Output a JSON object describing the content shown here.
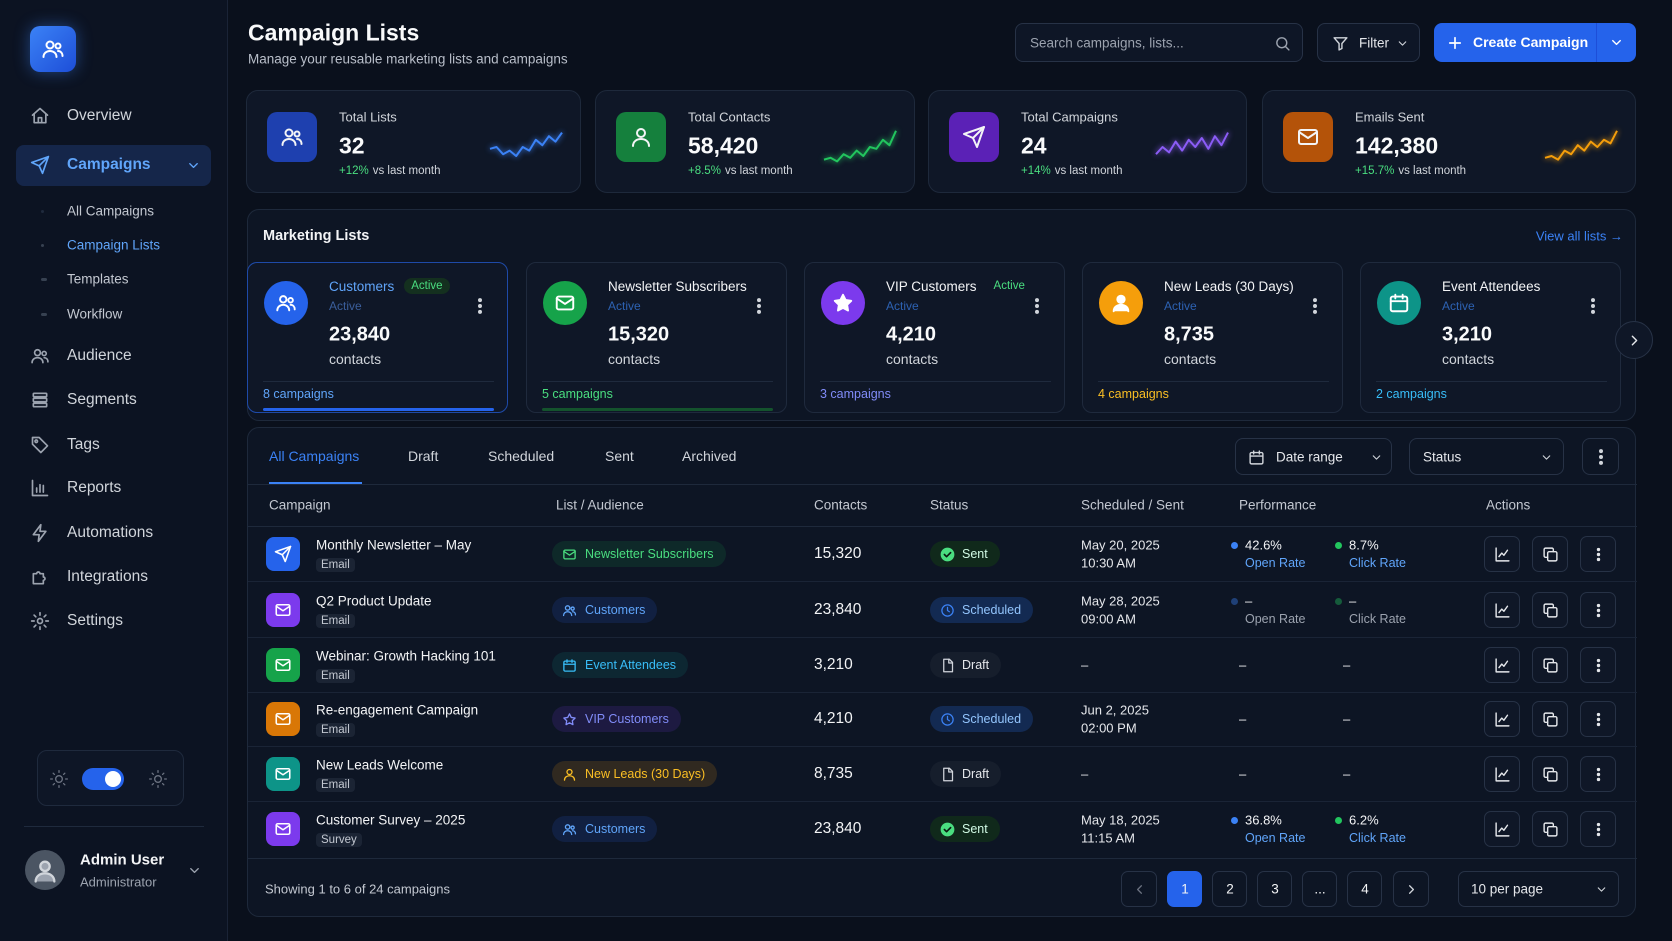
{
  "sidebar": {
    "nav": [
      "Overview",
      "Campaigns",
      "Audience",
      "Segments",
      "Tags",
      "Reports",
      "Automations",
      "Integrations",
      "Settings"
    ],
    "subnav": [
      "All Campaigns",
      "Campaign Lists",
      "Templates",
      "Workflow"
    ],
    "user": {
      "name": "Admin User",
      "role": "Administrator"
    }
  },
  "header": {
    "title": "Campaign Lists",
    "subtitle": "Manage your reusable marketing lists and campaigns",
    "search": "Search campaigns, lists...",
    "filter": "Filter",
    "create": "Create Campaign"
  },
  "stats": [
    {
      "label": "Total Lists",
      "value": "32",
      "change": "+12%",
      "note": "vs last month"
    },
    {
      "label": "Total Contacts",
      "value": "58,420",
      "change": "+8.5%",
      "note": "vs last month"
    },
    {
      "label": "Total Campaigns",
      "value": "24",
      "change": "+14%",
      "note": "vs last month"
    },
    {
      "label": "Emails Sent",
      "value": "142,380",
      "change": "+15.7%",
      "note": "vs last month"
    }
  ],
  "lists": {
    "title": "Marketing Lists",
    "view_all": "View all lists →",
    "items": [
      {
        "name": "Customers",
        "badge": "Active",
        "status": "Active",
        "count": "23,840",
        "unit": "contacts",
        "campaigns": "8 campaigns"
      },
      {
        "name": "Newsletter Subscribers",
        "status": "Active",
        "count": "15,320",
        "unit": "contacts",
        "campaigns": "5 campaigns"
      },
      {
        "name": "VIP Customers",
        "badge": "Active",
        "status": "Active",
        "count": "4,210",
        "unit": "contacts",
        "campaigns": "3 campaigns"
      },
      {
        "name": "New Leads (30 Days)",
        "status": "Active",
        "count": "8,735",
        "unit": "contacts",
        "campaigns": "4 campaigns"
      },
      {
        "name": "Event Attendees",
        "status": "Active",
        "count": "3,210",
        "unit": "contacts",
        "campaigns": "2 campaigns"
      }
    ]
  },
  "table": {
    "tabs": [
      "All Campaigns",
      "Draft",
      "Scheduled",
      "Sent",
      "Archived"
    ],
    "date_range": "Date range",
    "status_filter": "Status",
    "columns": [
      "Campaign",
      "List / Audience",
      "Contacts",
      "Status",
      "Scheduled / Sent",
      "Performance",
      "Actions"
    ],
    "rows": [
      {
        "name": "Monthly Newsletter – May",
        "type": "Email",
        "list": "Newsletter Subscribers",
        "contacts": "15,320",
        "status": "Sent",
        "date": "May 20, 2025",
        "time": "10:30 AM",
        "open": "42.6%",
        "open_label": "Open Rate",
        "click": "8.7%",
        "click_label": "Click Rate"
      },
      {
        "name": "Q2 Product Update",
        "type": "Email",
        "list": "Customers",
        "contacts": "23,840",
        "status": "Scheduled",
        "date": "May 28, 2025",
        "time": "09:00 AM",
        "open": "–",
        "open_label": "Open Rate",
        "click": "–",
        "click_label": "Click Rate"
      },
      {
        "name": "Webinar: Growth Hacking 101",
        "type": "Email",
        "list": "Event Attendees",
        "contacts": "3,210",
        "status": "Draft",
        "date": "–",
        "open": "–",
        "click": "–"
      },
      {
        "name": "Re-engagement Campaign",
        "type": "Email",
        "list": "VIP Customers",
        "contacts": "4,210",
        "status": "Scheduled",
        "date": "Jun 2, 2025",
        "time": "02:00 PM",
        "open": "–",
        "click": "–"
      },
      {
        "name": "New Leads Welcome",
        "type": "Email",
        "list": "New Leads (30 Days)",
        "contacts": "8,735",
        "status": "Draft",
        "date": "–",
        "open": "–",
        "click": "–"
      },
      {
        "name": "Customer Survey – 2025",
        "type": "Survey",
        "list": "Customers",
        "contacts": "23,840",
        "status": "Sent",
        "date": "May 18, 2025",
        "time": "11:15 AM",
        "open": "36.8%",
        "open_label": "Open Rate",
        "click": "6.2%",
        "click_label": "Click Rate"
      }
    ],
    "footer": "Showing 1 to 6 of 24 campaigns",
    "pages": [
      "1",
      "2",
      "3",
      "...",
      "4"
    ],
    "per_page": "10 per page"
  }
}
